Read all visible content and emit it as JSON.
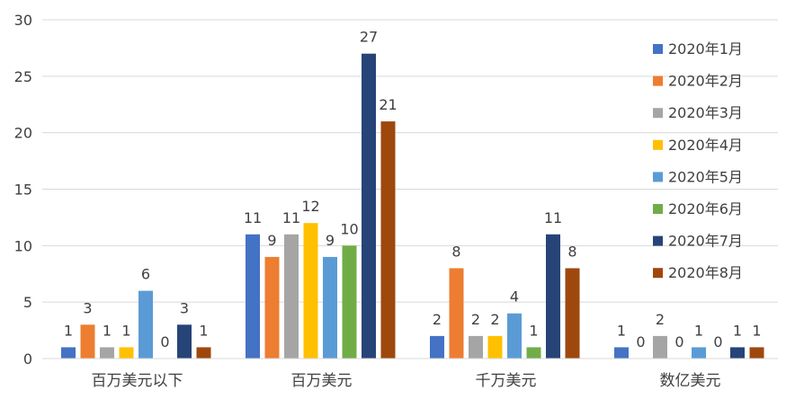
{
  "chart_data": {
    "type": "bar",
    "title": "",
    "xlabel": "",
    "ylabel": "",
    "ylim": [
      0,
      30
    ],
    "yticks": [
      0,
      5,
      10,
      15,
      20,
      25,
      30
    ],
    "grid": true,
    "legend_position": "top-right",
    "data_labels": true,
    "categories": [
      "百万美元以下",
      "百万美元",
      "千万美元",
      "数亿美元"
    ],
    "series": [
      {
        "name": "2020年1月",
        "color": "#4472C4",
        "values": [
          1,
          11,
          2,
          1
        ]
      },
      {
        "name": "2020年2月",
        "color": "#ED7D31",
        "values": [
          3,
          9,
          8,
          0
        ]
      },
      {
        "name": "2020年3月",
        "color": "#A5A5A5",
        "values": [
          1,
          11,
          2,
          2
        ]
      },
      {
        "name": "2020年4月",
        "color": "#FFC000",
        "values": [
          1,
          12,
          2,
          0
        ]
      },
      {
        "name": "2020年5月",
        "color": "#5B9BD5",
        "values": [
          6,
          9,
          4,
          1
        ]
      },
      {
        "name": "2020年6月",
        "color": "#70AD47",
        "values": [
          0,
          10,
          1,
          0
        ]
      },
      {
        "name": "2020年7月",
        "color": "#264478",
        "values": [
          3,
          27,
          11,
          1
        ]
      },
      {
        "name": "2020年8月",
        "color": "#9E480E",
        "values": [
          1,
          21,
          8,
          1
        ]
      }
    ]
  }
}
